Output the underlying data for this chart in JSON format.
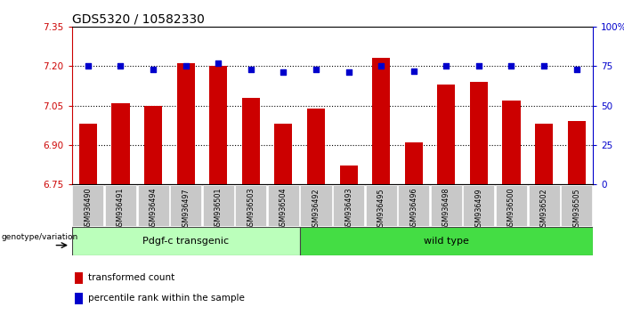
{
  "title": "GDS5320 / 10582330",
  "samples": [
    "GSM936490",
    "GSM936491",
    "GSM936494",
    "GSM936497",
    "GSM936501",
    "GSM936503",
    "GSM936504",
    "GSM936492",
    "GSM936493",
    "GSM936495",
    "GSM936496",
    "GSM936498",
    "GSM936499",
    "GSM936500",
    "GSM936502",
    "GSM936505"
  ],
  "bar_values": [
    6.98,
    7.06,
    7.05,
    7.21,
    7.2,
    7.08,
    6.98,
    7.04,
    6.82,
    7.23,
    6.91,
    7.13,
    7.14,
    7.07,
    6.98,
    6.99
  ],
  "dot_values": [
    75,
    75,
    73,
    75,
    77,
    73,
    71,
    73,
    71,
    75,
    72,
    75,
    75,
    75,
    75,
    73
  ],
  "ylim_left": [
    6.75,
    7.35
  ],
  "ylim_right": [
    0,
    100
  ],
  "yticks_left": [
    6.75,
    6.9,
    7.05,
    7.2,
    7.35
  ],
  "yticks_right": [
    0,
    25,
    50,
    75,
    100
  ],
  "ytick_right_labels": [
    "0",
    "25",
    "50",
    "75",
    "100%"
  ],
  "bar_color": "#cc0000",
  "dot_color": "#0000cc",
  "gridline_values": [
    6.9,
    7.05,
    7.2
  ],
  "group1_label": "Pdgf-c transgenic",
  "group2_label": "wild type",
  "group1_color": "#bbffbb",
  "group2_color": "#44dd44",
  "group1_count": 7,
  "group2_count": 9,
  "genotype_label": "genotype/variation",
  "legend_bar_label": "transformed count",
  "legend_dot_label": "percentile rank within the sample",
  "background_color": "#ffffff",
  "plot_bg_color": "#ffffff",
  "xticklabel_bg": "#c8c8c8",
  "bar_width": 0.55,
  "tick_fontsize": 7.5,
  "label_fontsize": 8,
  "title_fontsize": 10
}
